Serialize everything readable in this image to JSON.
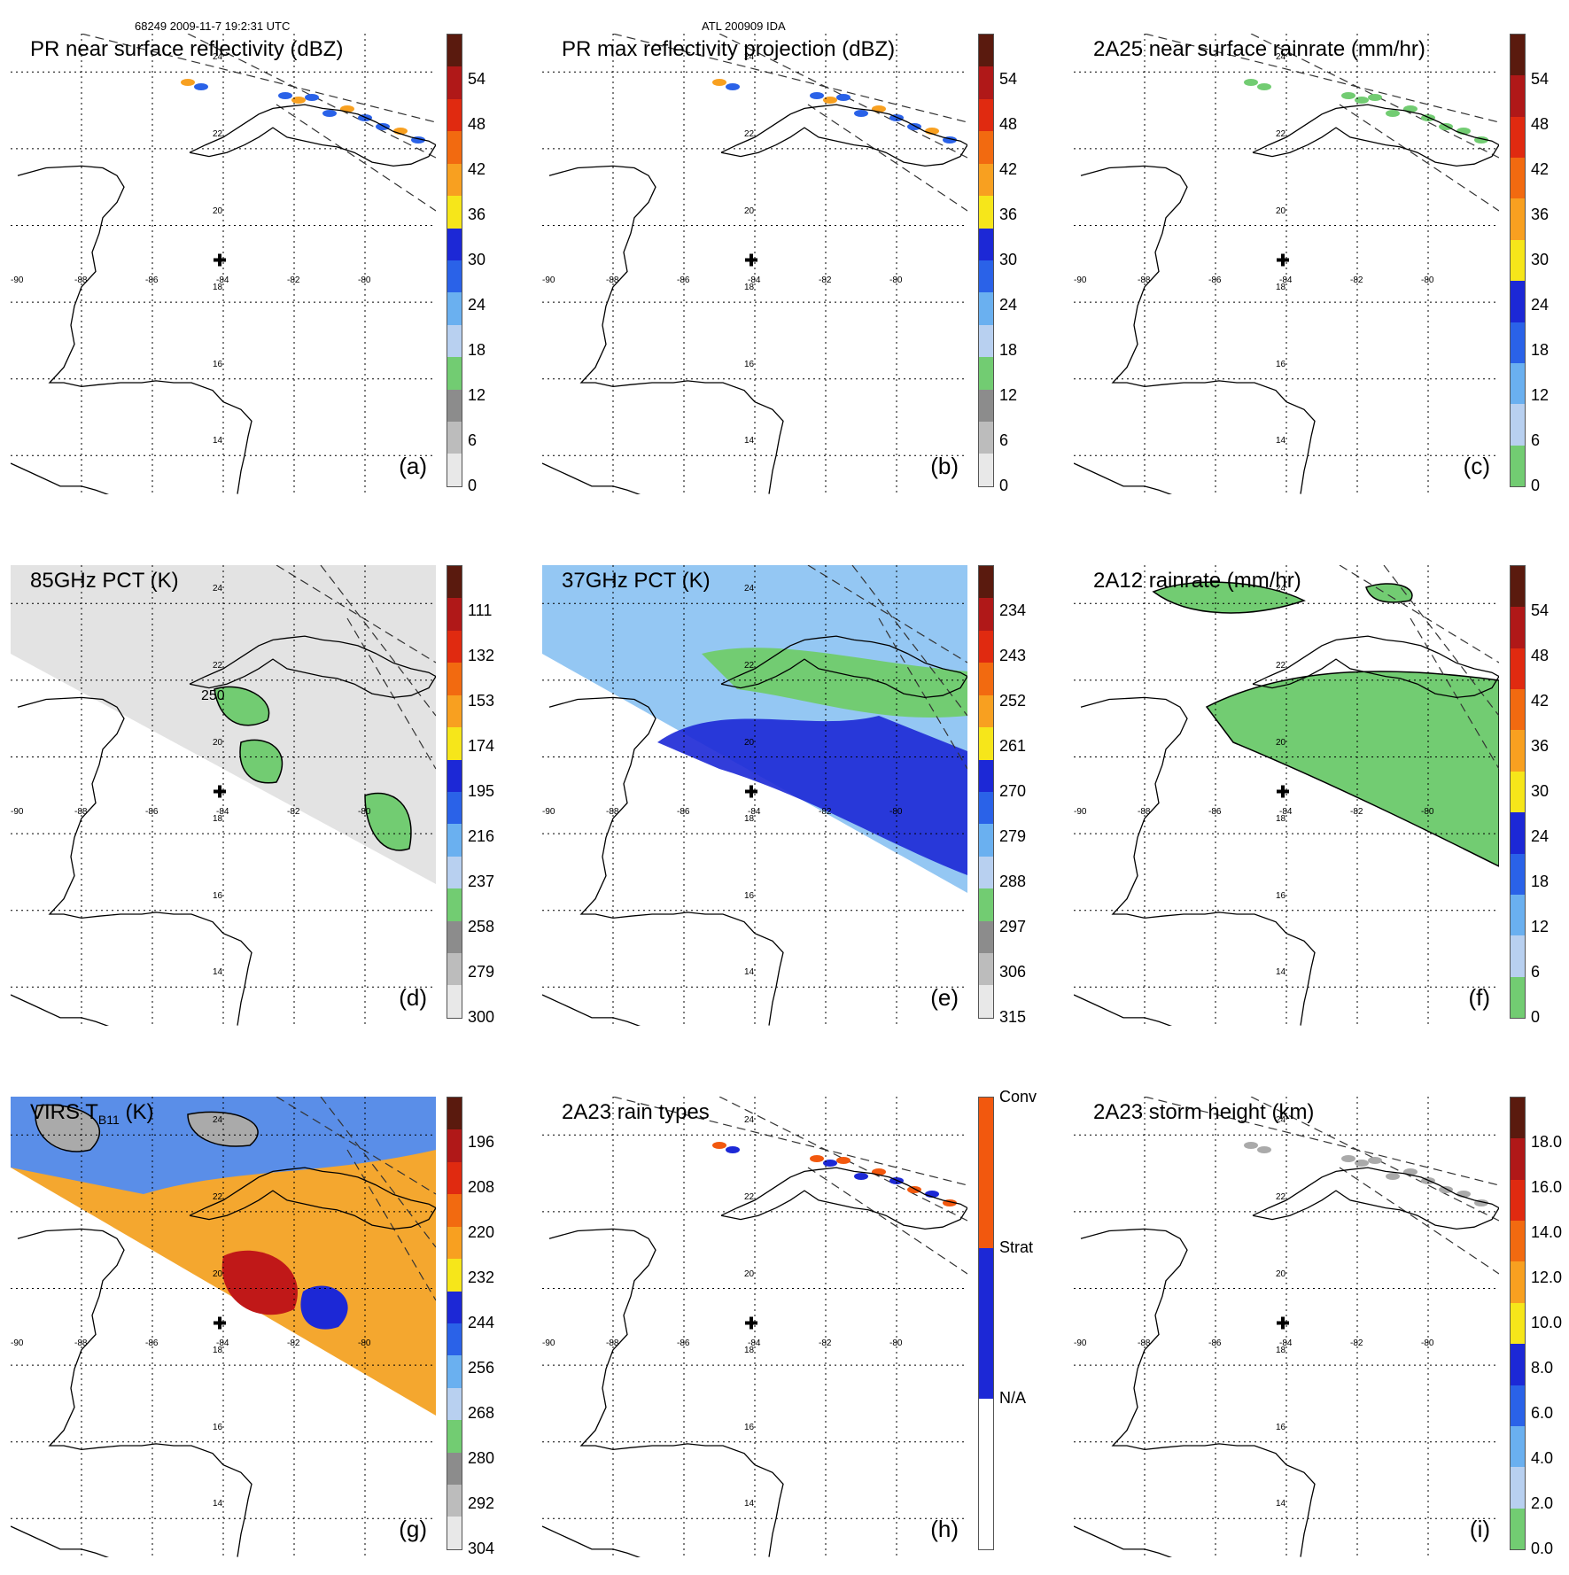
{
  "header": {
    "left": "68249 2009-11-7 19:2:31 UTC",
    "center": "ATL 200909 IDA"
  },
  "lon_labels": [
    "-90",
    "-88",
    "-86",
    "-84",
    "-82",
    "-80"
  ],
  "lat_labels": [
    "24",
    "22",
    "20",
    "18",
    "16",
    "14"
  ],
  "panels": [
    {
      "title": "PR near surface reflectivity (dBZ)",
      "label": "(a)",
      "ticks": [
        "54",
        "48",
        "42",
        "36",
        "30",
        "24",
        "18",
        "12",
        "6",
        "0"
      ],
      "swath": "narrow",
      "fill": "none"
    },
    {
      "title": "PR max reflectivity projection (dBZ)",
      "label": "(b)",
      "ticks": [
        "54",
        "48",
        "42",
        "36",
        "30",
        "24",
        "18",
        "12",
        "6",
        "0"
      ],
      "swath": "narrow",
      "fill": "none"
    },
    {
      "title": "2A25 near surface rainrate (mm/hr)",
      "label": "(c)",
      "ticks": [
        "54",
        "48",
        "42",
        "36",
        "30",
        "24",
        "18",
        "12",
        "6",
        "0"
      ],
      "swath": "narrow",
      "fill": "none"
    },
    {
      "title": "85GHz PCT (K)",
      "label": "(d)",
      "ticks": [
        "111",
        "132",
        "153",
        "174",
        "195",
        "216",
        "237",
        "258",
        "279",
        "300"
      ],
      "swath": "wide",
      "fill": "gray",
      "contour": "250"
    },
    {
      "title": "37GHz PCT (K)",
      "label": "(e)",
      "ticks": [
        "234",
        "243",
        "252",
        "261",
        "270",
        "279",
        "288",
        "297",
        "306",
        "315"
      ],
      "swath": "wide",
      "fill": "blue"
    },
    {
      "title": "2A12 rainrate (mm/hr)",
      "label": "(f)",
      "ticks": [
        "54",
        "48",
        "42",
        "36",
        "30",
        "24",
        "18",
        "12",
        "6",
        "0"
      ],
      "swath": "wide",
      "fill": "green"
    },
    {
      "title": "VIRS T",
      "title_sub": "B11",
      "title_end": " (K)",
      "label": "(g)",
      "ticks": [
        "196",
        "208",
        "220",
        "232",
        "244",
        "256",
        "268",
        "280",
        "292",
        "304"
      ],
      "swath": "wide",
      "fill": "virs"
    },
    {
      "title": "2A23 rain types",
      "label": "(h)",
      "ticks": [
        "Conv",
        "Strat",
        "N/A"
      ],
      "swath": "narrow",
      "fill": "none",
      "categorical": true
    },
    {
      "title": "2A23 storm height (km)",
      "label": "(i)",
      "ticks": [
        "18.0",
        "16.0",
        "14.0",
        "12.0",
        "10.0",
        "8.0",
        "6.0",
        "4.0",
        "2.0",
        "0.0"
      ],
      "swath": "narrow",
      "fill": "none"
    }
  ],
  "colors": {
    "ramp_dbz": [
      "#5a1a0e",
      "#b01818",
      "#e02a10",
      "#f26a10",
      "#f8a020",
      "#f6e61a",
      "#1c28d6",
      "#2a62e8",
      "#6ab0f0",
      "#b8d0f0",
      "#72cc72",
      "#8c8c8c",
      "#bcbcbc",
      "#e8e8e8"
    ],
    "ramp_rain": [
      "#5a1a0e",
      "#b01818",
      "#e02a10",
      "#f26a10",
      "#f8a020",
      "#f6e61a",
      "#1c28d6",
      "#2a62e8",
      "#6ab0f0",
      "#b8d0f0",
      "#72cc72"
    ],
    "rain_types": [
      "#f2580e",
      "#1c28d6",
      "#ffffff"
    ]
  }
}
